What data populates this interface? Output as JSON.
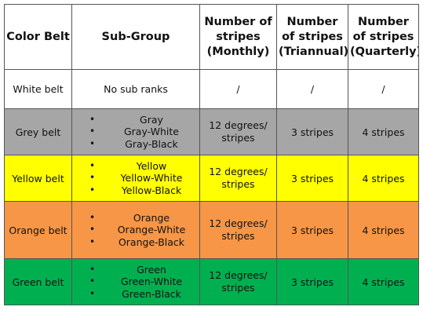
{
  "table": {
    "headers": {
      "belt": "Color Belt",
      "subgroup": "Sub-Group",
      "monthly": "Number of stripes (Monthly)",
      "triannual": "Number of stripes (Triannual)",
      "quarterly": "Number of stripes (Quarterly)"
    },
    "rows": [
      {
        "belt": "White belt",
        "color": "#ffffff",
        "subgroup_text": "No sub ranks",
        "subgroups": [],
        "monthly": "/",
        "triannual": "/",
        "quarterly": "/"
      },
      {
        "belt": "Grey belt",
        "color": "#a6a6a6",
        "subgroup_text": "",
        "subgroups": [
          "Gray",
          "Gray-White",
          "Gray-Black"
        ],
        "monthly": "12 degrees/ stripes",
        "triannual": "3 stripes",
        "quarterly": "4 stripes"
      },
      {
        "belt": "Yellow belt",
        "color": "#ffff00",
        "subgroup_text": "",
        "subgroups": [
          "Yellow",
          "Yellow-White",
          "Yellow-Black"
        ],
        "monthly": "12 degrees/ stripes",
        "triannual": "3 stripes",
        "quarterly": "4 stripes"
      },
      {
        "belt": "Orange belt",
        "color": "#f79646",
        "subgroup_text": "",
        "subgroups": [
          "Orange",
          "Orange-White",
          "Orange-Black"
        ],
        "monthly": "12 degrees/ stripes",
        "triannual": "3 stripes",
        "quarterly": "4 stripes"
      },
      {
        "belt": "Green belt",
        "color": "#00b050",
        "subgroup_text": "",
        "subgroups": [
          "Green",
          "Green-White",
          "Green-Black"
        ],
        "monthly": "12 degrees/ stripes",
        "triannual": "3 stripes",
        "quarterly": "4 stripes"
      }
    ]
  }
}
